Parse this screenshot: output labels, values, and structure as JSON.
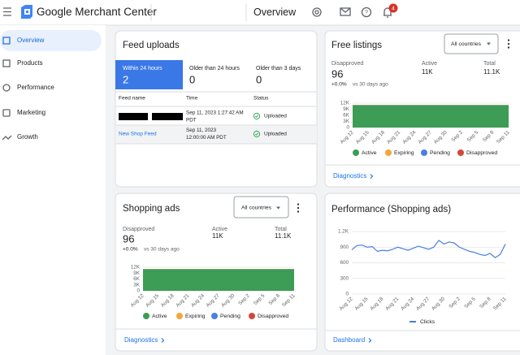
{
  "header": {
    "product_name": "Google Merchant Center",
    "page_title": "Overview",
    "notification_count": 4
  },
  "sidebar": {
    "items": [
      "Overview",
      "Products",
      "Performance",
      "Marketing",
      "Growth"
    ]
  },
  "feed_uploads": {
    "title": "Feed uploads",
    "tabs": [
      {
        "label": "Within 24 hours",
        "count": 2
      },
      {
        "label": "Older than 24 hours",
        "count": 0
      },
      {
        "label": "Older than 3 days",
        "count": 0
      }
    ],
    "table": {
      "columns": [
        "Feed name",
        "Time",
        "Status"
      ],
      "rows": [
        {
          "time": [
            "Sep 11, 2023 1:27:42 AM",
            "PDT"
          ],
          "status": "Uploaded"
        },
        {
          "feed_name": "New Shop Feed",
          "time": [
            "Sep 11, 2023",
            "12:00:00 AM PDT"
          ],
          "status": "Uploaded"
        }
      ]
    }
  },
  "free_listings": {
    "title": "Free listings",
    "country_filter": "All countries",
    "stats": [
      {
        "label": "Disapproved",
        "value": "96",
        "change": "+0.0%",
        "comparison": "vs 30 days ago"
      },
      {
        "label": "Active",
        "value": "11K"
      },
      {
        "label": "Total",
        "value": "11.1K"
      }
    ],
    "link": "Diagnostics"
  },
  "shopping_ads": {
    "title": "Shopping ads",
    "country_filter": "All countries",
    "stats": [
      {
        "label": "Disapproved",
        "value": "96",
        "change": "+0.0%",
        "comparison": "vs 30 days ago"
      },
      {
        "label": "Active",
        "value": "11K"
      },
      {
        "label": "Total",
        "value": "11.1K"
      }
    ],
    "link": "Diagnostics"
  },
  "performance": {
    "title": "Performance (Shopping ads)",
    "link": "Dashboard"
  },
  "chart_data": [
    {
      "type": "area",
      "stacked": true,
      "categories": [
        "Aug 12",
        "Aug 15",
        "Aug 18",
        "Aug 21",
        "Aug 24",
        "Aug 27",
        "Aug 30",
        "Sep 2",
        "Sep 5",
        "Sep 8",
        "Sep 11"
      ],
      "series": [
        {
          "name": "Active",
          "color": "#3d9c55",
          "values": [
            11000,
            11000,
            11000,
            11000,
            11000,
            11000,
            11000,
            11000,
            11000,
            11000,
            11000
          ]
        },
        {
          "name": "Expiring",
          "color": "#f2a63b",
          "values": [
            0,
            0,
            0,
            0,
            0,
            0,
            0,
            0,
            0,
            0,
            0
          ]
        },
        {
          "name": "Pending",
          "color": "#4b7fe0",
          "values": [
            0,
            0,
            0,
            0,
            0,
            0,
            0,
            0,
            0,
            0,
            0
          ]
        },
        {
          "name": "Disapproved",
          "color": "#d2483a",
          "values": [
            96,
            96,
            96,
            96,
            96,
            96,
            96,
            96,
            96,
            96,
            96
          ]
        }
      ],
      "ylim": [
        0,
        12000
      ],
      "yticks": [
        0,
        {
          "value": 3000,
          "label": "3K"
        },
        {
          "value": 6000,
          "label": "6K"
        },
        {
          "value": 9000,
          "label": "9K"
        },
        {
          "value": 12000,
          "label": "12K"
        }
      ],
      "grid": true
    },
    {
      "type": "area",
      "stacked": true,
      "categories": [
        "Aug 12",
        "Aug 15",
        "Aug 18",
        "Aug 21",
        "Aug 24",
        "Aug 27",
        "Aug 30",
        "Sep 2",
        "Sep 5",
        "Sep 8",
        "Sep 11"
      ],
      "series": [
        {
          "name": "Active",
          "color": "#3d9c55",
          "values": [
            11000,
            11000,
            11000,
            11000,
            11000,
            11000,
            11000,
            11000,
            11000,
            11000,
            11000
          ]
        },
        {
          "name": "Expiring",
          "color": "#f2a63b",
          "values": [
            0,
            0,
            0,
            0,
            0,
            0,
            0,
            0,
            0,
            0,
            0
          ]
        },
        {
          "name": "Pending",
          "color": "#4b7fe0",
          "values": [
            0,
            0,
            0,
            0,
            0,
            0,
            0,
            0,
            0,
            0,
            0
          ]
        },
        {
          "name": "Disapproved",
          "color": "#d2483a",
          "values": [
            96,
            96,
            96,
            96,
            96,
            96,
            96,
            96,
            96,
            96,
            96
          ]
        }
      ],
      "ylim": [
        0,
        12000
      ],
      "yticks": [
        0,
        {
          "value": 3000,
          "label": "3K"
        },
        {
          "value": 6000,
          "label": "6K"
        },
        {
          "value": 9000,
          "label": "9K"
        },
        {
          "value": 12000,
          "label": "12K"
        }
      ],
      "grid": true
    },
    {
      "type": "line",
      "categories": [
        "Aug 12",
        null,
        null,
        "Aug 15",
        null,
        null,
        "Aug 18",
        null,
        null,
        "Aug 21",
        null,
        null,
        "Aug 24",
        null,
        null,
        "Aug 27",
        null,
        null,
        "Aug 30",
        null,
        null,
        "Sep 2",
        null,
        null,
        "Sep 5",
        null,
        null,
        "Sep 8",
        null,
        null,
        "Sep 11"
      ],
      "series": [
        {
          "name": "Clicks",
          "color": "#4a7fdd",
          "values": [
            850,
            930,
            940,
            900,
            910,
            820,
            840,
            830,
            860,
            900,
            870,
            840,
            880,
            920,
            890,
            860,
            900,
            1030,
            960,
            1000,
            980,
            900,
            860,
            820,
            800,
            760,
            740,
            780,
            700,
            760,
            960
          ]
        }
      ],
      "ylim": [
        0,
        1200
      ],
      "yticks": [
        0,
        300,
        600,
        900,
        {
          "value": 1200,
          "label": "1.2K"
        }
      ],
      "grid": true
    }
  ]
}
